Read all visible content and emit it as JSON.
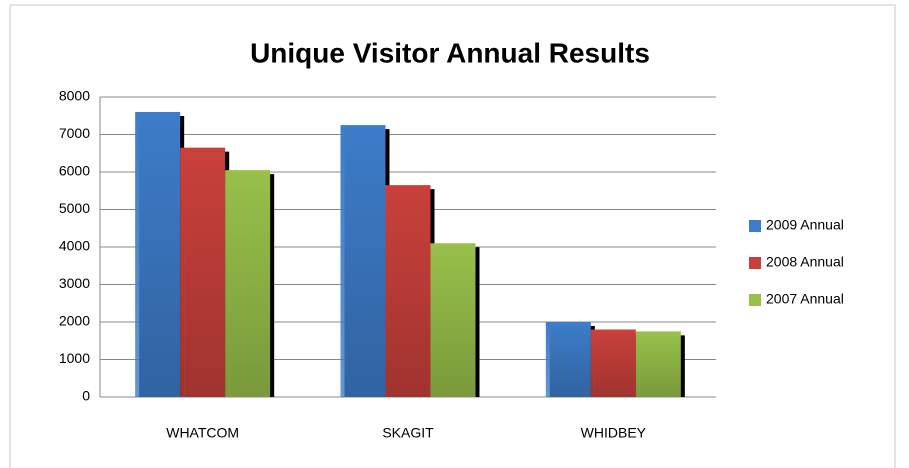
{
  "chart_data": {
    "type": "bar",
    "title": "Unique Visitor Annual Results",
    "categories": [
      "WHATCOM",
      "SKAGIT",
      "WHIDBEY"
    ],
    "series": [
      {
        "name": "2009 Annual",
        "color": "#3d7cc9",
        "values": [
          7600,
          7250,
          2000
        ]
      },
      {
        "name": "2008 Annual",
        "color": "#c9403b",
        "values": [
          6650,
          5650,
          1800
        ]
      },
      {
        "name": "2007 Annual",
        "color": "#98c04a",
        "values": [
          6050,
          4100,
          1750
        ]
      }
    ],
    "ylim": [
      0,
      8000
    ],
    "yticks": [
      0,
      1000,
      2000,
      3000,
      4000,
      5000,
      6000,
      7000,
      8000
    ],
    "grid": true,
    "legend": "right"
  }
}
